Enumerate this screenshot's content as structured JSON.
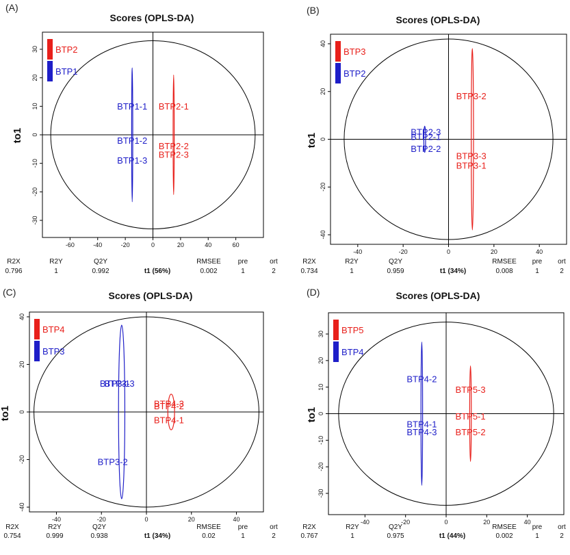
{
  "chart_data": [
    {
      "type": "scatter",
      "panel_label": "(A)",
      "title": "Scores (OPLS-DA)",
      "ylabel": "to1",
      "xlim": [
        -80,
        80
      ],
      "ylim": [
        -36,
        36
      ],
      "xticks": [
        -60,
        -40,
        -20,
        0,
        20,
        40,
        60
      ],
      "yticks": [
        -30,
        -20,
        -10,
        0,
        10,
        20,
        30
      ],
      "grid": false,
      "legend_position": "top-left",
      "series": [
        {
          "name": "BTP2",
          "color": "#e8201b",
          "points": [
            {
              "label": "BTP2-1",
              "x": 15,
              "y": 10
            },
            {
              "label": "BTP2-2",
              "x": 15,
              "y": -4
            },
            {
              "label": "BTP2-3",
              "x": 15,
              "y": -7
            }
          ],
          "ellipse": {
            "cx": 15,
            "cy": 0,
            "rx": 0.4,
            "ry": 21
          }
        },
        {
          "name": "BTP1",
          "color": "#1e1ec8",
          "points": [
            {
              "label": "BTP1-1",
              "x": -15,
              "y": 10
            },
            {
              "label": "BTP1-2",
              "x": -15,
              "y": -2
            },
            {
              "label": "BTP1-3",
              "x": -15,
              "y": -9
            }
          ],
          "ellipse": {
            "cx": -15,
            "cy": 0,
            "rx": 0.4,
            "ry": 23.5
          }
        }
      ],
      "t2_ellipse": {
        "rx": 74,
        "ry": 33
      },
      "footer": {
        "headers": [
          "R2X",
          "R2Y",
          "Q2Y",
          "t1 (56%)",
          "RMSEE",
          "pre",
          "ort"
        ],
        "values": [
          "0.796",
          "1",
          "0.992",
          "",
          "0.002",
          "1",
          "2"
        ]
      }
    },
    {
      "type": "scatter",
      "panel_label": "(B)",
      "title": "Scores (OPLS-DA)",
      "ylabel": "to1",
      "xlim": [
        -52,
        52
      ],
      "ylim": [
        -44,
        44
      ],
      "xticks": [
        -40,
        -20,
        0,
        20,
        40
      ],
      "yticks": [
        -40,
        -20,
        0,
        20,
        40
      ],
      "grid": false,
      "legend_position": "top-left",
      "series": [
        {
          "name": "BTP3",
          "color": "#e8201b",
          "points": [
            {
              "label": "BTP3-2",
              "x": 10,
              "y": 18
            },
            {
              "label": "BTP3-3",
              "x": 10,
              "y": -7
            },
            {
              "label": "BTP3-1",
              "x": 10,
              "y": -11
            }
          ],
          "ellipse": {
            "cx": 10.5,
            "cy": 0,
            "rx": 0.5,
            "ry": 38
          }
        },
        {
          "name": "BTP2",
          "color": "#1e1ec8",
          "points": [
            {
              "label": "BTP2-3",
              "x": -10,
              "y": 3
            },
            {
              "label": "BTP2-1",
              "x": -10,
              "y": 1
            },
            {
              "label": "BTP2-2",
              "x": -10,
              "y": -4
            }
          ],
          "ellipse": {
            "cx": -10.5,
            "cy": 0,
            "rx": 0.4,
            "ry": 5.5
          }
        }
      ],
      "t2_ellipse": {
        "rx": 46,
        "ry": 42
      },
      "footer": {
        "headers": [
          "R2X",
          "R2Y",
          "Q2Y",
          "t1 (34%)",
          "RMSEE",
          "pre",
          "ort"
        ],
        "values": [
          "0.734",
          "1",
          "0.959",
          "",
          "0.008",
          "1",
          "2"
        ]
      }
    },
    {
      "type": "scatter",
      "panel_label": "(C)",
      "title": "Scores (OPLS-DA)",
      "ylabel": "to1",
      "xlim": [
        -52,
        52
      ],
      "ylim": [
        -42,
        42
      ],
      "xticks": [
        -40,
        -20,
        0,
        20,
        40
      ],
      "yticks": [
        -40,
        -20,
        0,
        20,
        40
      ],
      "grid": false,
      "legend_position": "top-left",
      "series": [
        {
          "name": "BTP4",
          "color": "#e8201b",
          "points": [
            {
              "label": "BTP4-3",
              "x": 10,
              "y": 3.5
            },
            {
              "label": "BTP4-2",
              "x": 10,
              "y": 2.5
            },
            {
              "label": "BTP4-1",
              "x": 10,
              "y": -3.5
            }
          ],
          "ellipse": {
            "cx": 11,
            "cy": 0,
            "rx": 1.5,
            "ry": 7.5
          }
        },
        {
          "name": "BTP3",
          "color": "#1e1ec8",
          "points": [
            {
              "label": "BTP3-1",
              "x": -14,
              "y": 12
            },
            {
              "label": "BTP3-3",
              "x": -12,
              "y": 12
            },
            {
              "label": "BTP3-2",
              "x": -15,
              "y": -21
            }
          ],
          "ellipse": {
            "cx": -11,
            "cy": 0,
            "rx": 1.4,
            "ry": 36.5
          }
        }
      ],
      "t2_ellipse": {
        "rx": 50,
        "ry": 40
      },
      "footer": {
        "headers": [
          "R2X",
          "R2Y",
          "Q2Y",
          "t1 (34%)",
          "RMSEE",
          "pre",
          "ort"
        ],
        "values": [
          "0.754",
          "0.999",
          "0.938",
          "",
          "0.02",
          "1",
          "2"
        ]
      }
    },
    {
      "type": "scatter",
      "panel_label": "(D)",
      "title": "Scores (OPLS-DA)",
      "ylabel": "to1",
      "xlim": [
        -58,
        58
      ],
      "ylim": [
        -38,
        38
      ],
      "xticks": [
        -40,
        -20,
        0,
        20,
        40
      ],
      "yticks": [
        -30,
        -20,
        -10,
        0,
        10,
        20,
        30
      ],
      "grid": false,
      "legend_position": "top-left",
      "series": [
        {
          "name": "BTP5",
          "color": "#e8201b",
          "points": [
            {
              "label": "BTP5-3",
              "x": 12,
              "y": 9
            },
            {
              "label": "BTP5-1",
              "x": 12,
              "y": -1
            },
            {
              "label": "BTP5-2",
              "x": 12,
              "y": -7
            }
          ],
          "ellipse": {
            "cx": 12,
            "cy": 0,
            "rx": 0.4,
            "ry": 18
          }
        },
        {
          "name": "BTP4",
          "color": "#1e1ec8",
          "points": [
            {
              "label": "BTP4-2",
              "x": -12,
              "y": 13
            },
            {
              "label": "BTP4-1",
              "x": -12,
              "y": -4
            },
            {
              "label": "BTP4-3",
              "x": -12,
              "y": -7
            }
          ],
          "ellipse": {
            "cx": -12,
            "cy": 0,
            "rx": 0.4,
            "ry": 27
          }
        }
      ],
      "t2_ellipse": {
        "rx": 53,
        "ry": 34.5
      },
      "footer": {
        "headers": [
          "R2X",
          "R2Y",
          "Q2Y",
          "t1 (44%)",
          "RMSEE",
          "pre",
          "ort"
        ],
        "values": [
          "0.767",
          "1",
          "0.975",
          "",
          "0.002",
          "1",
          "2"
        ]
      }
    }
  ]
}
